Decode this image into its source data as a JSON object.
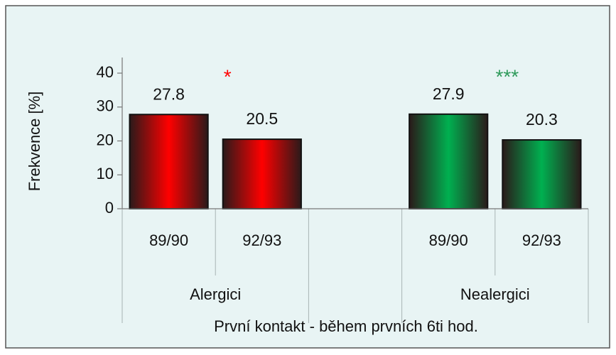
{
  "chart_data": {
    "type": "bar",
    "y_label": "Frekvence [%]",
    "x_label": "První kontakt - během prvních 6ti hod.",
    "categories": [
      "89/90",
      "92/93",
      null,
      "89/90",
      "92/93"
    ],
    "values": [
      27.8,
      20.5,
      null,
      27.9,
      20.3
    ],
    "groups": [
      {
        "label": "Alergici",
        "annotation": "*",
        "color": "#ff0000",
        "annotation_color": "#ff0000"
      },
      {
        "label": "Nealergici",
        "annotation": "***",
        "color": "#00b050",
        "annotation_color": "#2e9a5a"
      }
    ],
    "ylim": [
      0,
      40
    ],
    "yticks": [
      0,
      10,
      20,
      30,
      40
    ]
  }
}
